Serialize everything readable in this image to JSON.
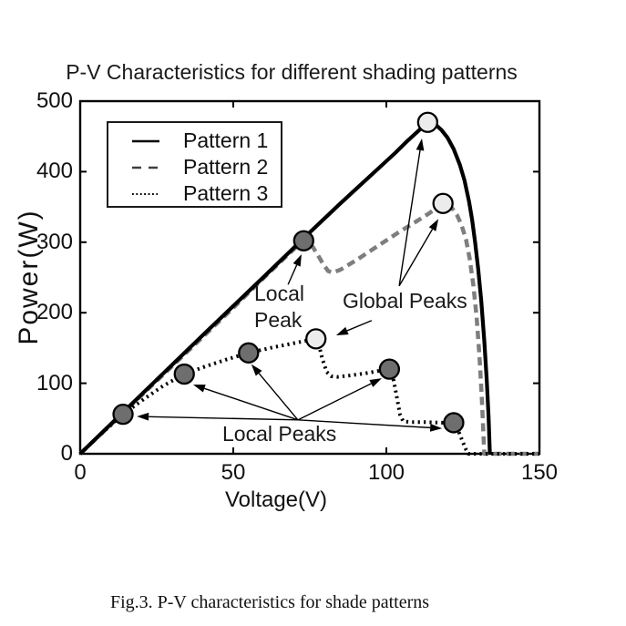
{
  "caption": "Fig.3. P-V characteristics for shade patterns",
  "colors": {
    "axis": "#000000",
    "background": "#ffffff",
    "pattern1": "#000000",
    "pattern2_gray": "#7e7e7e",
    "pattern3": "#000000",
    "local_peak_marker_fill": "#6e6e6e",
    "global_peak_marker_fill": "#ececec",
    "marker_edge": "#000000"
  },
  "chart_data": {
    "type": "line",
    "title": "P-V Characteristics for different shading patterns",
    "xlabel": "Voltage(V)",
    "ylabel": "Power(W)",
    "xlim": [
      0,
      150
    ],
    "ylim": [
      0,
      500
    ],
    "x_ticks": [
      0,
      50,
      100,
      150
    ],
    "y_ticks": [
      0,
      100,
      200,
      300,
      400,
      500
    ],
    "grid": false,
    "legend": {
      "position": "upper-left",
      "entries": [
        {
          "label": "Pattern 1",
          "style": "solid"
        },
        {
          "label": "Pattern 2",
          "style": "dashed"
        },
        {
          "label": "Pattern 3",
          "style": "dotted"
        }
      ]
    },
    "series": [
      {
        "name": "Pattern 1",
        "style": "solid",
        "color": "#000000",
        "points": [
          [
            0,
            0
          ],
          [
            20,
            84
          ],
          [
            40,
            168
          ],
          [
            60,
            251
          ],
          [
            75,
            314
          ],
          [
            85,
            355
          ],
          [
            92,
            383
          ],
          [
            98,
            407
          ],
          [
            103,
            427
          ],
          [
            107,
            444
          ],
          [
            110,
            456
          ],
          [
            112,
            464
          ],
          [
            113.5,
            470
          ],
          [
            115,
            469
          ],
          [
            116.5,
            465
          ],
          [
            118,
            459
          ],
          [
            120,
            448
          ],
          [
            122,
            432
          ],
          [
            124,
            410
          ],
          [
            125.5,
            388
          ],
          [
            127,
            358
          ],
          [
            128,
            332
          ],
          [
            129,
            300
          ],
          [
            130,
            262
          ],
          [
            131,
            216
          ],
          [
            132,
            160
          ],
          [
            132.8,
            104
          ],
          [
            133.4,
            52
          ],
          [
            133.8,
            0
          ]
        ]
      },
      {
        "name": "Pattern 2",
        "style": "dashed",
        "color": "#7e7e7e",
        "points": [
          [
            0,
            0
          ],
          [
            30,
            124
          ],
          [
            50,
            207
          ],
          [
            62,
            258
          ],
          [
            68,
            283
          ],
          [
            71,
            295
          ],
          [
            73,
            302
          ],
          [
            74.5,
            300
          ],
          [
            76,
            293
          ],
          [
            78,
            279
          ],
          [
            79.5,
            268
          ],
          [
            81,
            259
          ],
          [
            82.5,
            257
          ],
          [
            85,
            261
          ],
          [
            90,
            274
          ],
          [
            97,
            294
          ],
          [
            104,
            314
          ],
          [
            110,
            330
          ],
          [
            114,
            341
          ],
          [
            116.5,
            349
          ],
          [
            118.5,
            355
          ],
          [
            120,
            353
          ],
          [
            121.5,
            348
          ],
          [
            123,
            339
          ],
          [
            124.5,
            325
          ],
          [
            126,
            304
          ],
          [
            127.2,
            277
          ],
          [
            128.4,
            240
          ],
          [
            129.5,
            193
          ],
          [
            130.4,
            140
          ],
          [
            131.2,
            78
          ],
          [
            131.8,
            20
          ],
          [
            132,
            0
          ],
          [
            150,
            0
          ]
        ]
      },
      {
        "name": "Pattern 3",
        "style": "dotted",
        "color": "#000000",
        "points": [
          [
            0,
            0
          ],
          [
            7,
            29
          ],
          [
            14,
            56
          ],
          [
            20,
            75
          ],
          [
            27,
            96
          ],
          [
            34,
            113
          ],
          [
            41,
            124
          ],
          [
            48,
            134
          ],
          [
            55,
            143
          ],
          [
            62,
            150
          ],
          [
            70,
            157
          ],
          [
            77,
            163
          ],
          [
            78,
            154
          ],
          [
            79,
            136
          ],
          [
            80.5,
            116
          ],
          [
            82,
            110
          ],
          [
            84,
            109
          ],
          [
            88,
            111
          ],
          [
            93,
            114
          ],
          [
            97,
            117
          ],
          [
            101,
            120
          ],
          [
            102,
            112
          ],
          [
            103,
            90
          ],
          [
            104.5,
            55
          ],
          [
            105.5,
            46
          ],
          [
            108,
            45
          ],
          [
            113,
            45
          ],
          [
            118,
            44
          ],
          [
            122,
            44
          ],
          [
            123,
            38
          ],
          [
            124.5,
            22
          ],
          [
            126,
            6
          ],
          [
            126.8,
            0
          ],
          [
            150,
            0
          ]
        ]
      }
    ],
    "peak_markers": {
      "local": {
        "fill": "#6e6e6e",
        "points": [
          [
            14,
            56
          ],
          [
            34,
            113
          ],
          [
            55,
            143
          ],
          [
            101,
            120
          ],
          [
            122,
            44
          ],
          [
            73,
            302
          ]
        ]
      },
      "global": {
        "fill": "#ececec",
        "points": [
          [
            77,
            163
          ],
          [
            113.5,
            470
          ],
          [
            118.5,
            355
          ]
        ]
      }
    },
    "annotations": {
      "local_peak": {
        "line1": "Local",
        "line2": "Peak"
      },
      "global_peaks": {
        "label": "Global Peaks"
      },
      "local_peaks": {
        "label": "Local Peaks"
      },
      "arrows": [
        {
          "from": [
            67.9,
            240
          ],
          "to": [
            72.3,
            283
          ]
        },
        {
          "from": [
            104.2,
            238
          ],
          "to": [
            111.6,
            447
          ]
        },
        {
          "from": [
            104.2,
            238
          ],
          "to": [
            117.0,
            333
          ]
        },
        {
          "from": [
            95.2,
            189
          ],
          "to": [
            83.6,
            168
          ]
        },
        {
          "from": [
            71.1,
            48
          ],
          "to": [
            18.5,
            53
          ]
        },
        {
          "from": [
            71.1,
            48
          ],
          "to": [
            36.9,
            98
          ]
        },
        {
          "from": [
            71.1,
            48
          ],
          "to": [
            55.9,
            127
          ]
        },
        {
          "from": [
            71.1,
            48
          ],
          "to": [
            98.5,
            107
          ]
        },
        {
          "from": [
            71.1,
            48
          ],
          "to": [
            118.2,
            36
          ]
        }
      ]
    }
  }
}
